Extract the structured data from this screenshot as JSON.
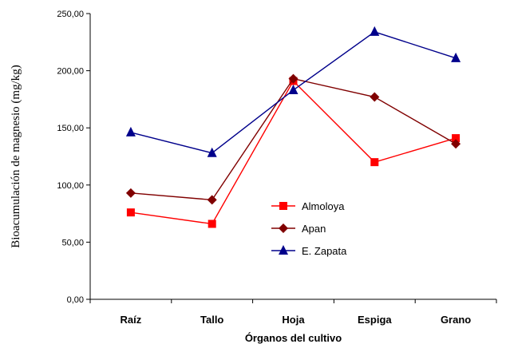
{
  "chart_data": {
    "type": "line",
    "categories": [
      "Raíz",
      "Tallo",
      "Hoja",
      "Espiga",
      "Grano"
    ],
    "xlabel": "Órganos del cultivo",
    "ylabel": "Bioacumulación de magnesio (mg/kg)",
    "ylim": [
      0,
      250
    ],
    "yticks": [
      "0,00",
      "50,00",
      "100,00",
      "150,00",
      "200,00",
      "250,00"
    ],
    "grid": false,
    "legend_position": "center-right",
    "series": [
      {
        "name": "Almoloya",
        "color": "#ff0000",
        "marker": "square",
        "values": [
          76,
          66,
          191,
          120,
          141
        ]
      },
      {
        "name": "Apan",
        "color": "#800000",
        "marker": "diamond",
        "values": [
          93,
          87,
          193,
          177,
          136
        ]
      },
      {
        "name": "E. Zapata",
        "color": "#00008b",
        "marker": "triangle",
        "values": [
          146,
          128,
          183,
          234,
          211
        ]
      }
    ]
  }
}
